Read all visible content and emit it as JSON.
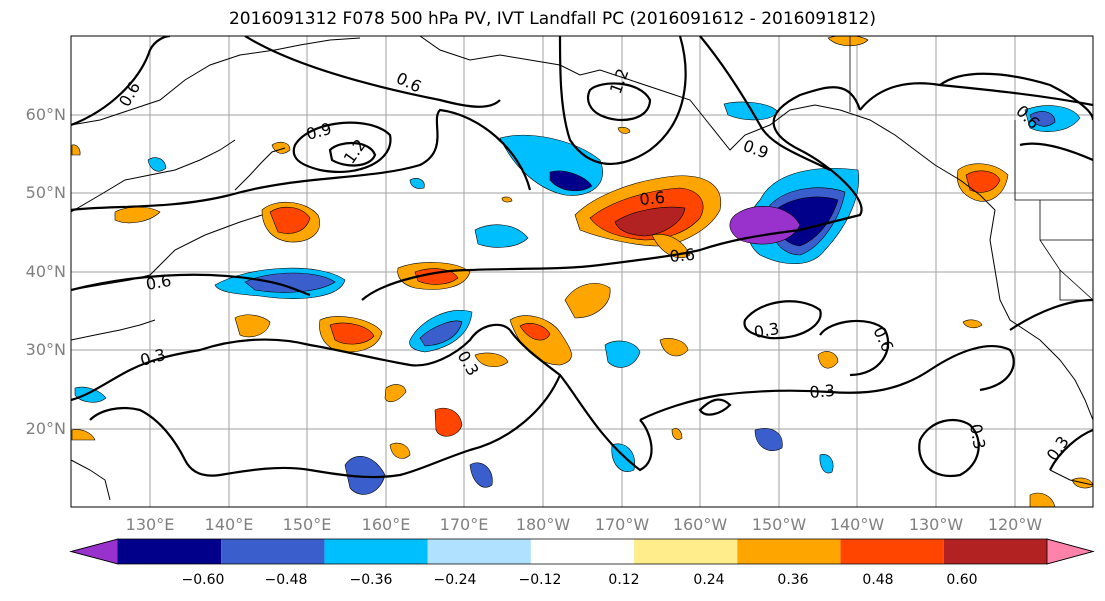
{
  "title": "2016091312 F078 500 hPa PV, IVT Landfall PC (2016091612 - 2016091812)",
  "lat_labels": [
    "60°N",
    "50°N",
    "40°N",
    "30°N",
    "20°N"
  ],
  "lon_labels": [
    "130°E",
    "140°E",
    "150°E",
    "160°E",
    "170°E",
    "180°W",
    "170°W",
    "160°W",
    "150°W",
    "140°W",
    "130°W",
    "120°W"
  ],
  "contour_labels": [
    "0.6",
    "0.6",
    "0.9",
    "1.2",
    "1.2",
    "0.9",
    "0.6",
    "0.6",
    "0.6",
    "0.3",
    "0.3",
    "0.3",
    "0.6",
    "0.3",
    "0.3",
    "0.3",
    "0.6"
  ],
  "colorbar": {
    "tick_labels": [
      "−0.60",
      "−0.48",
      "−0.36",
      "−0.24",
      "−0.12",
      "0.12",
      "0.24",
      "0.36",
      "0.48",
      "0.60"
    ],
    "colors": [
      "#9932CC",
      "#00008B",
      "#3A5FCD",
      "#00BFFF",
      "#B0E2FF",
      "#FFFFFF",
      "#FFEC8B",
      "#FFA500",
      "#FF4500",
      "#B22222",
      "#FF82AB"
    ]
  },
  "colors": {
    "grid": "#a0a0a0",
    "contour": "#000000",
    "axis_label": "#808080"
  }
}
